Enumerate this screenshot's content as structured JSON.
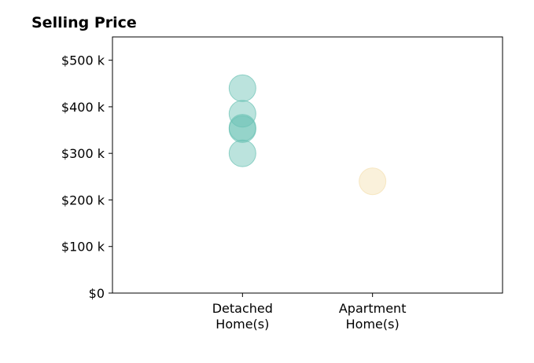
{
  "chart_data": {
    "type": "scatter",
    "title": "Selling Price",
    "xlabel": "",
    "ylabel": "",
    "categories": [
      "Detached\nHome(s)",
      "Apartment\nHome(s)"
    ],
    "xlim": [
      0,
      3
    ],
    "ylim": [
      0,
      550000
    ],
    "yticks": [
      0,
      100000,
      200000,
      300000,
      400000,
      500000
    ],
    "ytick_labels": [
      "$0",
      "$100 k",
      "$200 k",
      "$300 k",
      "$400 k",
      "$500 k"
    ],
    "grid": false,
    "series": [
      {
        "category": "Detached\nHome(s)",
        "color": "#69C2B4",
        "values": [
          440000,
          385000,
          355000,
          352000,
          300000
        ]
      },
      {
        "category": "Apartment\nHome(s)",
        "color": "#F3DFB0",
        "values": [
          240000
        ]
      }
    ]
  }
}
